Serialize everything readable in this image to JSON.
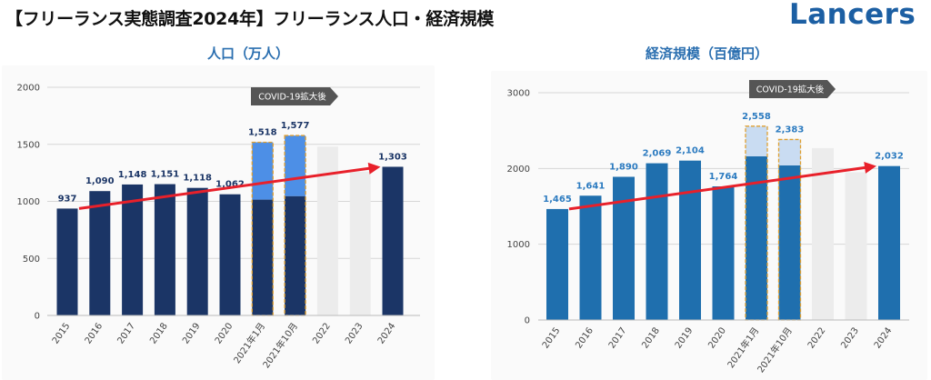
{
  "header": {
    "title": "【フリーランス実態調査2024年】フリーランス人口・経済規模",
    "logo_text": "Lancers"
  },
  "chart_data": [
    {
      "type": "bar",
      "title": "人口（万人）",
      "categories": [
        "2015",
        "2016",
        "2017",
        "2018",
        "2019",
        "2020",
        "2021年1月",
        "2021年10月",
        "2022",
        "2023",
        "2024"
      ],
      "values": [
        937,
        1090,
        1148,
        1151,
        1118,
        1062,
        1518,
        1577,
        null,
        null,
        1303
      ],
      "base_values": [
        937,
        1090,
        1148,
        1151,
        1118,
        1062,
        1015,
        1045,
        null,
        null,
        1303
      ],
      "value_labels": [
        "937",
        "1,090",
        "1,148",
        "1,151",
        "1,118",
        "1,062",
        "1,518",
        "1,577",
        "",
        "",
        "1,303"
      ],
      "placeholder_values": [
        null,
        null,
        null,
        null,
        null,
        null,
        null,
        null,
        1480,
        1260,
        null
      ],
      "yticks": [
        "0",
        "500",
        "1000",
        "1500",
        "2000"
      ],
      "ylim": [
        0,
        2000
      ],
      "annotation": "COVID-19拡大後",
      "trend": {
        "from": 937,
        "to": 1303
      },
      "colors": {
        "bar": "#1b3566",
        "covid_top": "#4d8fe6",
        "placeholder": "#ececec",
        "label": "#1b3566",
        "trend": "#e8202a"
      },
      "grid": true
    },
    {
      "type": "bar",
      "title": "経済規模（百億円）",
      "categories": [
        "2015",
        "2016",
        "2017",
        "2018",
        "2019",
        "2020",
        "2021年1月",
        "2021年10月",
        "2022",
        "2023",
        "2024"
      ],
      "values": [
        1465,
        1641,
        1890,
        2069,
        2104,
        1764,
        2558,
        2383,
        null,
        null,
        2032
      ],
      "base_values": [
        1465,
        1641,
        1890,
        2069,
        2104,
        1764,
        2160,
        2040,
        null,
        null,
        2032
      ],
      "value_labels": [
        "1,465",
        "1,641",
        "1,890",
        "2,069",
        "2,104",
        "1,764",
        "2,558",
        "2,383",
        "",
        "",
        "2,032"
      ],
      "placeholder_values": [
        null,
        null,
        null,
        null,
        null,
        null,
        null,
        null,
        2270,
        1950,
        null
      ],
      "yticks": [
        "0",
        "1000",
        "2000",
        "3000"
      ],
      "ylim": [
        0,
        3000
      ],
      "annotation": "COVID-19拡大後",
      "trend": {
        "from": 1465,
        "to": 2032
      },
      "colors": {
        "bar": "#1f6fae",
        "covid_top": "#c9dcf2",
        "placeholder": "#ececec",
        "label": "#2c7bc0",
        "trend": "#e8202a"
      },
      "grid": true
    }
  ]
}
